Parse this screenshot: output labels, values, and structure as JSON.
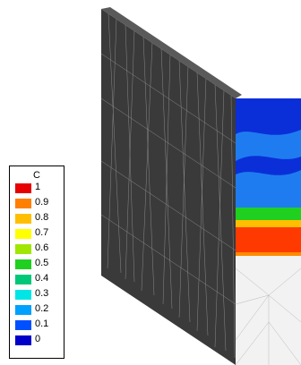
{
  "legend": {
    "title": "C",
    "entries": [
      {
        "label": "1",
        "color": "#e60000"
      },
      {
        "label": "0.9",
        "color": "#ff7f00"
      },
      {
        "label": "0.8",
        "color": "#ffbf00"
      },
      {
        "label": "0.7",
        "color": "#ffff00"
      },
      {
        "label": "0.6",
        "color": "#a0e600"
      },
      {
        "label": "0.5",
        "color": "#20d020"
      },
      {
        "label": "0.4",
        "color": "#00c878"
      },
      {
        "label": "0.3",
        "color": "#00e6e6"
      },
      {
        "label": "0.2",
        "color": "#00a0ff"
      },
      {
        "label": "0.1",
        "color": "#0050ff"
      },
      {
        "label": "0",
        "color": "#0000c8"
      }
    ]
  },
  "colors": {
    "mesh_face": "#3a3a3a",
    "mesh_lines": "#8a8a8a",
    "deep_blue": "#0a2fd8",
    "mid_blue": "#1f7cf0",
    "band_red": "#ff3a00",
    "band_orange": "#ff8a00",
    "empty_mesh": "#f2f2f2"
  }
}
